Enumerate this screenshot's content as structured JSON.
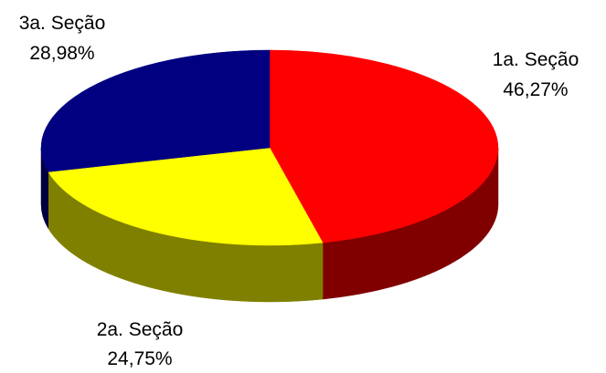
{
  "chart_data": {
    "type": "pie",
    "style": "3d",
    "title": "",
    "categories": [
      "1a. Seção",
      "2a. Seção",
      "3a. Seção"
    ],
    "values": [
      46.27,
      24.75,
      28.98
    ],
    "value_labels": [
      "46,27%",
      "24,75%",
      "28,98%"
    ],
    "colors": [
      "#ff0000",
      "#ffff00",
      "#000080"
    ],
    "side_colors": [
      "#800000",
      "#808000",
      "#000040"
    ],
    "legend": "none",
    "start_angle": "top (12 o'clock), clockwise"
  }
}
